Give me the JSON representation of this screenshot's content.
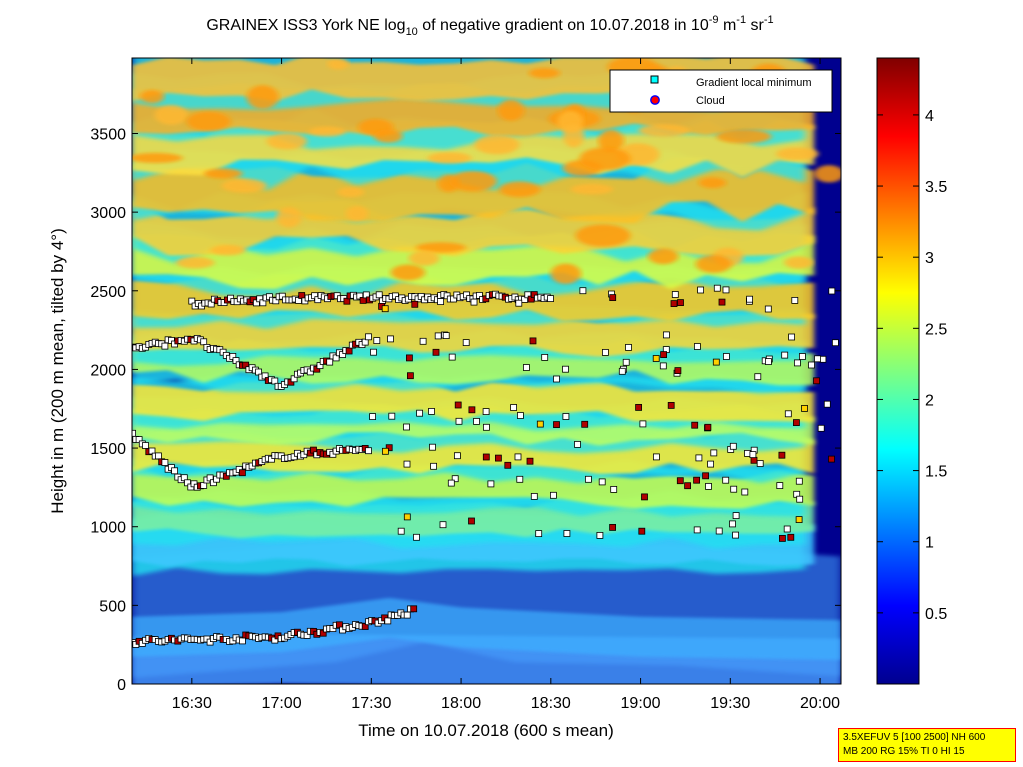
{
  "chart_data": {
    "type": "heatmap",
    "title_parts": {
      "prefix": "GRAINEX ISS3 York NE log",
      "sub": "10",
      "mid": " of negative gradient on 10.07.2018 in 10",
      "exp1": "-9",
      "m": " m",
      "exp2": "-1",
      "sr": " sr",
      "exp3": "-1"
    },
    "xlabel": "Time on 10.07.2018 (600 s mean)",
    "ylabel": "Height in m (200 m mean, tilted by 4°)",
    "xlim": [
      "16:10",
      "20:07"
    ],
    "ylim": [
      0,
      3980
    ],
    "x_ticks": [
      "16:30",
      "17:00",
      "17:30",
      "18:00",
      "18:30",
      "19:00",
      "19:30",
      "20:00"
    ],
    "y_ticks": [
      0,
      500,
      1000,
      1500,
      2000,
      2500,
      3000,
      3500
    ],
    "colorbar": {
      "colormap": "jet",
      "range": [
        0,
        4.4
      ],
      "ticks": [
        "0.5",
        "1",
        "1.5",
        "2",
        "2.5",
        "3",
        "3.5",
        "4"
      ]
    },
    "legend": {
      "placement": "top-right",
      "entries": [
        {
          "label": "Gradient local minimum",
          "marker": "square",
          "face": "#00ffff",
          "edge": "#000000"
        },
        {
          "label": "Cloud",
          "marker": "circle",
          "face": "#ff0000",
          "edge": "#0000ff"
        }
      ]
    },
    "gradient_layers_approx_m": {
      "surface_layer": [
        [
          16.17,
          270
        ],
        [
          17.0,
          300
        ],
        [
          17.5,
          390
        ],
        [
          17.75,
          470
        ]
      ],
      "layer_1500": [
        [
          16.17,
          1580
        ],
        [
          16.5,
          1250
        ],
        [
          17.0,
          1450
        ],
        [
          17.5,
          1500
        ]
      ],
      "layer_2200": [
        [
          16.17,
          2130
        ],
        [
          16.5,
          2200
        ],
        [
          17.0,
          1900
        ],
        [
          17.5,
          2200
        ]
      ],
      "layer_2450": [
        [
          16.5,
          2420
        ],
        [
          17.0,
          2450
        ],
        [
          18.0,
          2460
        ],
        [
          18.5,
          2460
        ]
      ]
    }
  },
  "info_box": {
    "line1": "3.5XEFUV 5 [100 2500] NH 600",
    "line2": "MB 200 RG 15% TI 0 HI 15"
  },
  "colors": {
    "background_field": "#00007f",
    "legend_bg": "#ffffff",
    "info_bg": "#ffff00",
    "info_border": "#ff0000"
  }
}
